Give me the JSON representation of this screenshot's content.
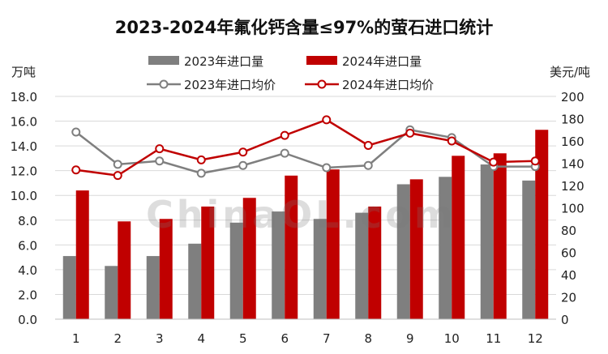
{
  "chart_data": {
    "type": "bar",
    "title": "2023-2024年氟化钙含量≤97%的萤石进口统计",
    "y_left_unit": "万吨",
    "y_right_unit": "美元/吨",
    "categories": [
      "1",
      "2",
      "3",
      "4",
      "5",
      "6",
      "7",
      "8",
      "9",
      "10",
      "11",
      "12"
    ],
    "y_left_ticks": [
      "0.0",
      "2.0",
      "4.0",
      "6.0",
      "8.0",
      "10.0",
      "12.0",
      "14.0",
      "16.0",
      "18.0"
    ],
    "y_right_ticks": [
      "0",
      "20",
      "40",
      "60",
      "80",
      "100",
      "120",
      "140",
      "160",
      "180",
      "200"
    ],
    "ylim_left": [
      0,
      18
    ],
    "ylim_right": [
      0,
      200
    ],
    "series": [
      {
        "name": "2023年进口量",
        "kind": "bar",
        "axis": "left",
        "color": "#7f7f7f",
        "values": [
          5.1,
          4.3,
          5.1,
          6.1,
          7.8,
          8.7,
          8.1,
          8.6,
          10.9,
          11.5,
          12.5,
          11.2
        ]
      },
      {
        "name": "2024年进口量",
        "kind": "bar",
        "axis": "left",
        "color": "#c00000",
        "values": [
          10.4,
          7.9,
          8.1,
          9.1,
          9.8,
          11.6,
          12.1,
          9.1,
          11.3,
          13.2,
          13.4,
          15.3
        ]
      },
      {
        "name": "2023年进口均价",
        "kind": "line",
        "axis": "right",
        "color": "#7f7f7f",
        "values": [
          168,
          139,
          142,
          131,
          138,
          149,
          136,
          138,
          170,
          163,
          137,
          137
        ]
      },
      {
        "name": "2024年进口均价",
        "kind": "line",
        "axis": "right",
        "color": "#c00000",
        "values": [
          134,
          129,
          153,
          143,
          150,
          165,
          179,
          156,
          167,
          160,
          141,
          142
        ]
      }
    ],
    "grid": true,
    "legend_position": "top"
  },
  "watermark": "ChinaOL.com"
}
